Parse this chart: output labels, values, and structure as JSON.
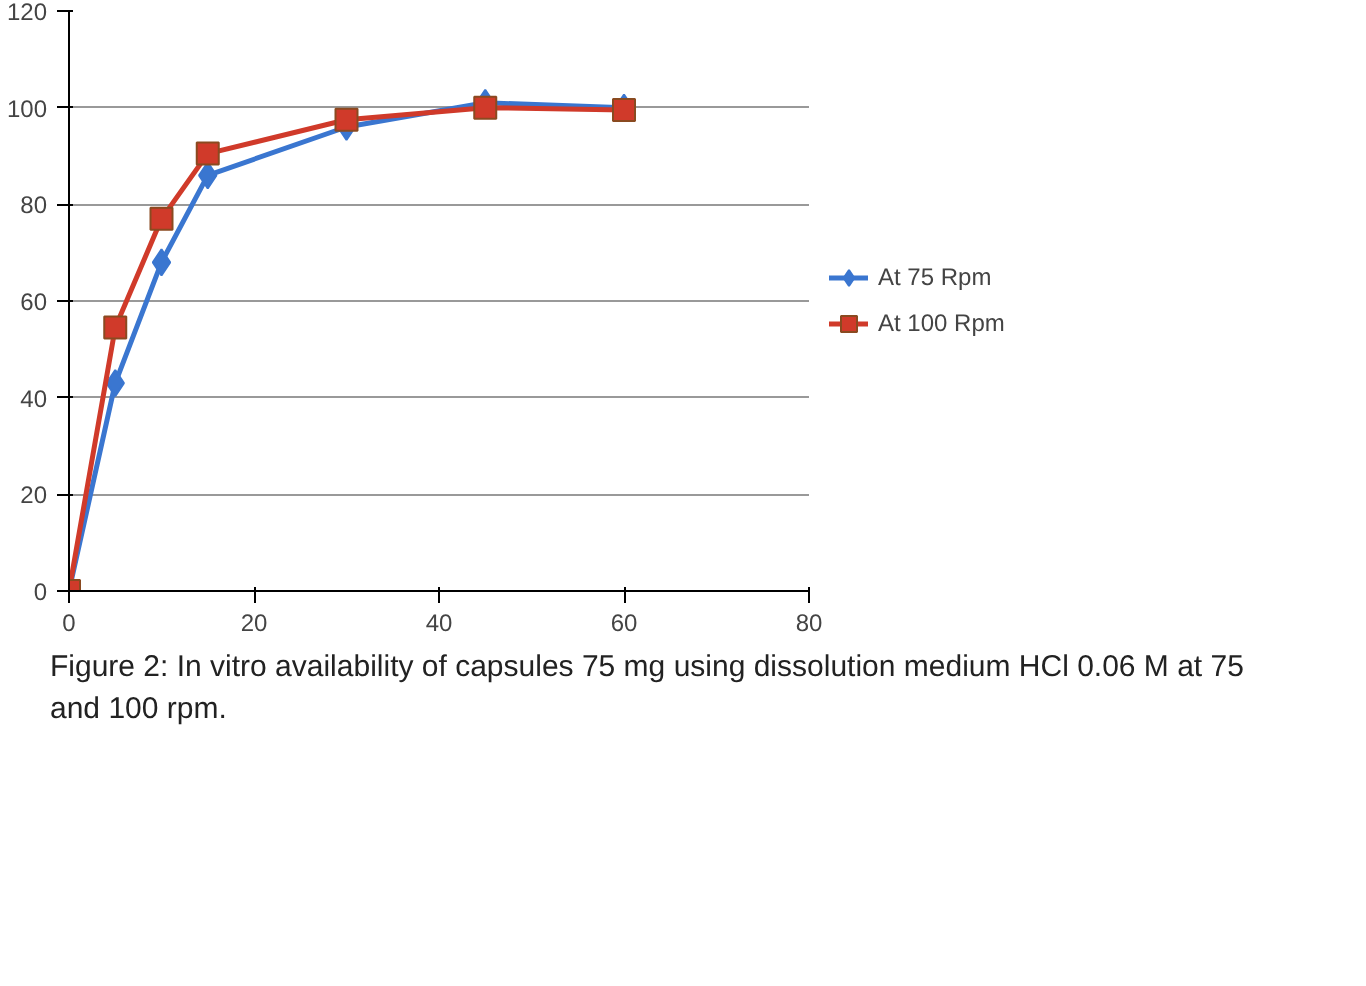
{
  "chart_data": {
    "type": "line",
    "x": [
      0,
      5,
      10,
      15,
      30,
      45,
      60
    ],
    "series": [
      {
        "name": "At 75 Rpm",
        "color": "#3a76d0",
        "marker": "diamond",
        "values": [
          0,
          43,
          68,
          86,
          96,
          101,
          100
        ]
      },
      {
        "name": "At 100 Rpm",
        "color": "#d03a2a",
        "marker": "square",
        "values": [
          0,
          54.5,
          77,
          90.5,
          97.5,
          100,
          99.5
        ]
      }
    ],
    "xlim": [
      0,
      80
    ],
    "xticks": [
      0,
      20,
      40,
      60,
      80
    ],
    "ylim": [
      0,
      120
    ],
    "yticks": [
      0,
      20,
      40,
      60,
      80,
      100,
      120
    ],
    "grid": "y",
    "legend": "right",
    "line_style": "solid",
    "annotations": [
      "Figure 2: In vitro availability of capsules 75 mg using dissolution medium HCl 0.06 M at 75 and 100 rpm."
    ]
  }
}
